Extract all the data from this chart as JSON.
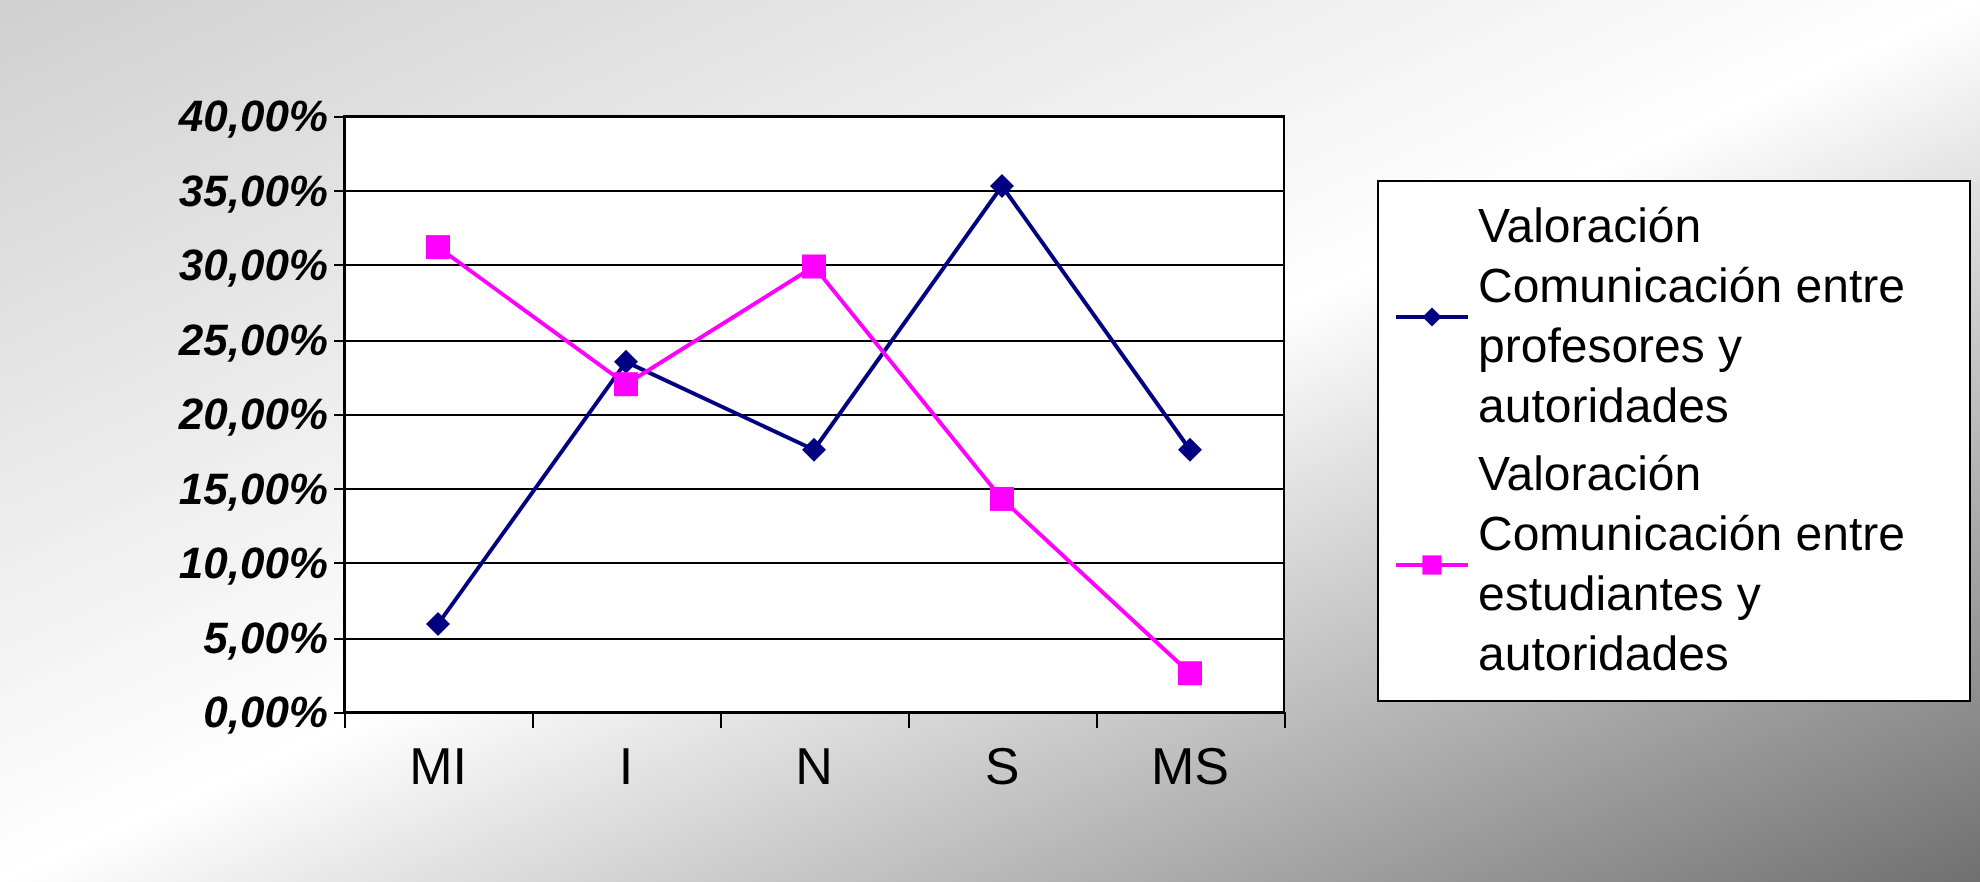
{
  "chart_data": {
    "type": "line",
    "categories": [
      "MI",
      "I",
      "N",
      "S",
      "MS"
    ],
    "series": [
      {
        "name": "Valoración Comunicación entre profesores y autoridades",
        "color": "#000080",
        "marker": "diamond",
        "values": [
          5.9,
          23.5,
          17.6,
          35.3,
          17.6
        ]
      },
      {
        "name": "Valoración Comunicación entre estudiantes y autoridades",
        "color": "#ff00ff",
        "marker": "square",
        "values": [
          31.2,
          22.0,
          29.9,
          14.3,
          2.6
        ]
      }
    ],
    "ylim": [
      0,
      40
    ],
    "yticks": [
      {
        "value": 0,
        "label": "0,00%"
      },
      {
        "value": 5,
        "label": "5,00%"
      },
      {
        "value": 10,
        "label": "10,00%"
      },
      {
        "value": 15,
        "label": "15,00%"
      },
      {
        "value": 20,
        "label": "20,00%"
      },
      {
        "value": 25,
        "label": "25,00%"
      },
      {
        "value": 30,
        "label": "30,00%"
      },
      {
        "value": 35,
        "label": "35,00%"
      },
      {
        "value": 40,
        "label": "40,00%"
      }
    ],
    "grid": "y",
    "legend": "right",
    "line_style": "solid"
  }
}
